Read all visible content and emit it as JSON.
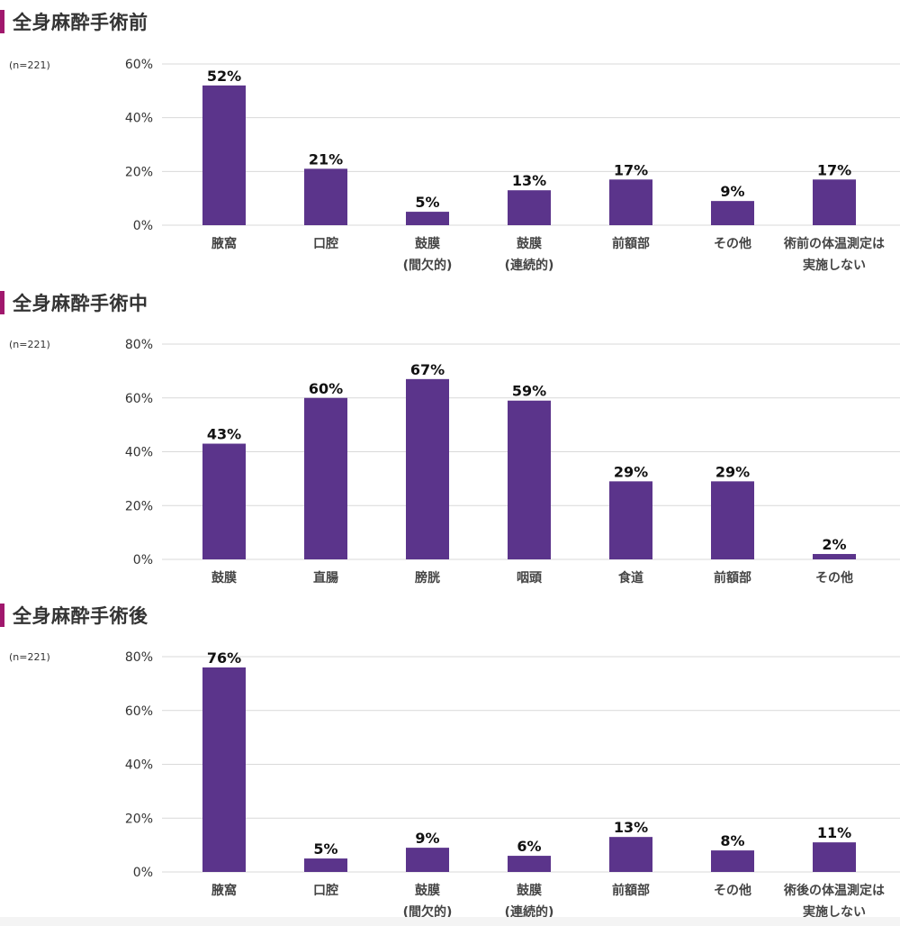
{
  "colors": {
    "bar": "#5b348b",
    "accent": "#a0186d",
    "grid": "#d9d9d9"
  },
  "chart_data": [
    {
      "type": "bar",
      "title": "全身麻酔手術前",
      "sample_note": "(n=221)",
      "ylim": [
        0,
        60
      ],
      "yticks": [
        "0%",
        "20%",
        "40%",
        "60%"
      ],
      "ytick_values": [
        0,
        20,
        40,
        60
      ],
      "categories": [
        [
          "腋窩"
        ],
        [
          "口腔"
        ],
        [
          "鼓膜",
          "(間欠的)"
        ],
        [
          "鼓膜",
          "(連続的)"
        ],
        [
          "前額部"
        ],
        [
          "その他"
        ],
        [
          "術前の体温測定は",
          "実施しない"
        ]
      ],
      "values": [
        52,
        21,
        5,
        13,
        17,
        9,
        17
      ],
      "value_labels": [
        "52%",
        "21%",
        "5%",
        "13%",
        "17%",
        "9%",
        "17%"
      ]
    },
    {
      "type": "bar",
      "title": "全身麻酔手術中",
      "sample_note": "(n=221)",
      "ylim": [
        0,
        80
      ],
      "yticks": [
        "0%",
        "20%",
        "40%",
        "60%",
        "80%"
      ],
      "ytick_values": [
        0,
        20,
        40,
        60,
        80
      ],
      "categories": [
        [
          "鼓膜"
        ],
        [
          "直腸"
        ],
        [
          "膀胱"
        ],
        [
          "咽頭"
        ],
        [
          "食道"
        ],
        [
          "前額部"
        ],
        [
          "その他"
        ]
      ],
      "values": [
        43,
        60,
        67,
        59,
        29,
        29,
        2
      ],
      "value_labels": [
        "43%",
        "60%",
        "67%",
        "59%",
        "29%",
        "29%",
        "2%"
      ]
    },
    {
      "type": "bar",
      "title": "全身麻酔手術後",
      "sample_note": "(n=221)",
      "ylim": [
        0,
        80
      ],
      "yticks": [
        "0%",
        "20%",
        "40%",
        "60%",
        "80%"
      ],
      "ytick_values": [
        0,
        20,
        40,
        60,
        80
      ],
      "categories": [
        [
          "腋窩"
        ],
        [
          "口腔"
        ],
        [
          "鼓膜",
          "(間欠的)"
        ],
        [
          "鼓膜",
          "(連続的)"
        ],
        [
          "前額部"
        ],
        [
          "その他"
        ],
        [
          "術後の体温測定は",
          "実施しない"
        ]
      ],
      "values": [
        76,
        5,
        9,
        6,
        13,
        8,
        11
      ],
      "value_labels": [
        "76%",
        "5%",
        "9%",
        "6%",
        "13%",
        "8%",
        "11%"
      ]
    }
  ]
}
